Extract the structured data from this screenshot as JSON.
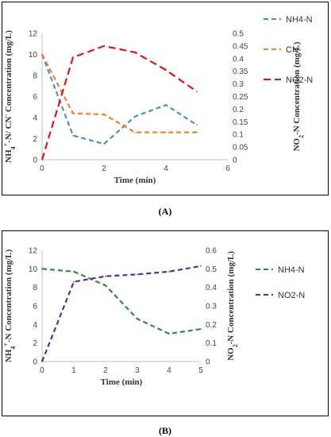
{
  "captions": [
    "(A)",
    "(B)"
  ],
  "chart_data": [
    {
      "type": "line",
      "x": [
        0,
        1,
        2,
        3,
        4,
        5
      ],
      "xlabel": "Time (min)",
      "ylabel_left": "NH4+-N/ CN- Concentration (mg/L)",
      "ylabel_right": "NO2-N Concentration (mg/L)",
      "xticks": [
        "0",
        "2",
        "4",
        "6"
      ],
      "xlim": [
        0,
        6
      ],
      "ylim_left": [
        0,
        12
      ],
      "yticks_left": [
        "0",
        "2",
        "4",
        "6",
        "8",
        "10",
        "12"
      ],
      "ylim_right": [
        0,
        0.5
      ],
      "yticks_right": [
        "0",
        "0.05",
        "0.1",
        "0.15",
        "0.2",
        "0.25",
        "0.3",
        "0.35",
        "0.4",
        "0.45",
        "0.5"
      ],
      "legend_position": "right",
      "series": [
        {
          "name": "NH4-N",
          "axis": "left",
          "color": "#4a90c8",
          "dash": "6,4",
          "values": [
            10,
            2.3,
            1.5,
            4.1,
            5.2,
            3.3
          ]
        },
        {
          "name": "CN-",
          "axis": "left",
          "color": "#ed7d31",
          "dash": "6,4",
          "values": [
            10,
            4.4,
            4.3,
            2.6,
            2.6,
            2.6
          ]
        },
        {
          "name": "NO2-N",
          "axis": "right",
          "color": "#e3121a",
          "dash": "9,5",
          "values": [
            0,
            0.405,
            0.45,
            0.425,
            0.355,
            0.27
          ]
        }
      ]
    },
    {
      "type": "line",
      "x": [
        0,
        1,
        2,
        3,
        4,
        5
      ],
      "xlabel": "Time (min)",
      "ylabel_left": "NH4+-N Concentration (mg/L)",
      "ylabel_right": "NO2-N Concentration (mg/L)",
      "xticks": [
        "0",
        "1",
        "2",
        "3",
        "4",
        "5"
      ],
      "xlim": [
        0,
        5
      ],
      "ylim_left": [
        0,
        12
      ],
      "yticks_left": [
        "0",
        "2",
        "4",
        "6",
        "8",
        "10",
        "12"
      ],
      "ylim_right": [
        0,
        0.6
      ],
      "yticks_right": [
        "0",
        "0.1",
        "0.2",
        "0.3",
        "0.4",
        "0.5",
        "0.6"
      ],
      "legend_position": "right",
      "series": [
        {
          "name": "NH4-N",
          "axis": "left",
          "color": "#2e8b3e",
          "dash": "6,4",
          "values": [
            10,
            9.7,
            8.2,
            4.6,
            3.0,
            3.5
          ]
        },
        {
          "name": "NO2-N",
          "axis": "right",
          "color": "#5b2c91",
          "dash": "6,4",
          "values": [
            0,
            0.43,
            0.46,
            0.47,
            0.485,
            0.515
          ]
        }
      ]
    }
  ]
}
